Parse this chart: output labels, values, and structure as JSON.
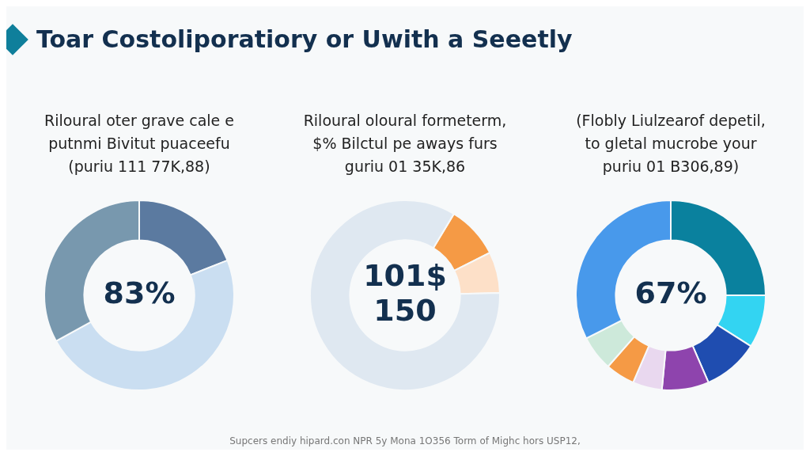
{
  "chart_data": [
    {
      "type": "donut",
      "title": "Toar Costoliporatiory or Uwith a Seeetly",
      "subtitle": "Riloural oter grave cale e\nputnmi Bivitut puaceefu\n(puriu 111 77K,88)",
      "categories": [
        null,
        null,
        null
      ],
      "values": [
        19,
        48,
        33
      ],
      "colors": [
        "#5b7aa0",
        "#cadef1",
        "#7898ae"
      ],
      "annotations": [
        "83%"
      ]
    },
    {
      "type": "donut",
      "subtitle": "Riloural oloural formeterm,\n$% Bilctul pe aways furs\nguriu 01 35K,86",
      "categories": [
        null,
        null,
        null
      ],
      "values": [
        9,
        7,
        84
      ],
      "colors": [
        "#f59a45",
        "#fde0c8",
        "#dfe8f1"
      ],
      "annotations": [
        "101$\n150"
      ]
    },
    {
      "type": "donut",
      "subtitle": "(Flobly Liulzearof depetil,\nto gletal mucrobe your\npuriu 01 B306,89)",
      "categories": [
        null,
        null,
        null,
        null,
        null,
        null,
        null,
        null
      ],
      "values": [
        25,
        9,
        9.5,
        8,
        5,
        5,
        6,
        32.5
      ],
      "colors": [
        "#0a819e",
        "#33d4f2",
        "#1f4db0",
        "#8e44ad",
        "#e9d8ef",
        "#f59a45",
        "#cde9da",
        "#4899eb"
      ],
      "annotations": [
        "67%",
        "Supcers endiy hipard.con NPR 5y Mona 1O356 Torm of Mighc hors USP12,"
      ]
    }
  ]
}
